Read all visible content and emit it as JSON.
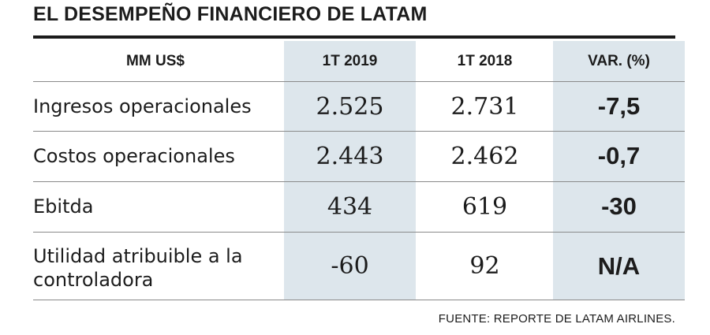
{
  "title": "EL DESEMPEÑO FINANCIERO DE LATAM",
  "source": "FUENTE: REPORTE DE LATAM AIRLINES.",
  "colors": {
    "shade": "#dde6ec",
    "text": "#1c1c1c",
    "rule": "#8a8a8a"
  },
  "chart_data": {
    "type": "table",
    "title": "EL DESEMPEÑO FINANCIERO DE LATAM",
    "columns": [
      "MM US$",
      "1T 2019",
      "1T 2018",
      "VAR. (%)"
    ],
    "rows": [
      {
        "label": "Ingresos operacionales",
        "values": [
          "2.525",
          "2.731",
          "-7,5"
        ]
      },
      {
        "label": "Costos operacionales",
        "values": [
          "2.443",
          "2.462",
          "-0,7"
        ]
      },
      {
        "label": "Ebitda",
        "values": [
          "434",
          "619",
          "-30"
        ]
      },
      {
        "label": "Utilidad atribuible a la controladora",
        "values": [
          "-60",
          "92",
          "N/A"
        ]
      }
    ]
  }
}
